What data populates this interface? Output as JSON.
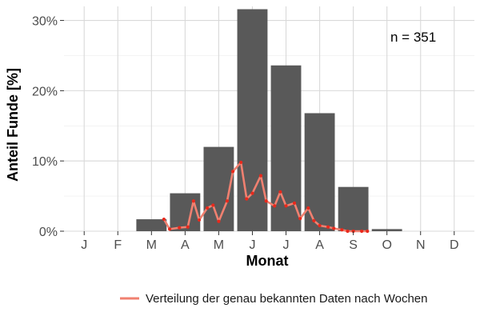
{
  "chart_data": {
    "type": "bar",
    "xlabel": "Monat",
    "ylabel": "Anteil Funde [%]",
    "annotation": "n = 351",
    "categories": [
      "J",
      "F",
      "M",
      "A",
      "M",
      "J",
      "J",
      "A",
      "S",
      "O",
      "N",
      "D"
    ],
    "values": [
      0,
      0,
      1.7,
      5.4,
      12.0,
      31.6,
      23.6,
      16.8,
      6.3,
      0.3,
      0,
      0
    ],
    "ylim": [
      0,
      32
    ],
    "yticks": [
      0,
      10,
      20,
      30
    ],
    "ytick_labels": [
      "0%",
      "10%",
      "20%",
      "30%"
    ],
    "bar_color": "#595959",
    "grid": true,
    "line_series": {
      "name": "Verteilung der genau bekannten Daten nach Wochen",
      "color": "#f08070",
      "point_color": "#e8291c",
      "x": [
        3.37,
        3.54,
        3.83,
        4.08,
        4.25,
        4.42,
        4.66,
        4.83,
        5.0,
        5.25,
        5.42,
        5.66,
        5.83,
        6.0,
        6.25,
        6.41,
        6.66,
        6.83,
        7.0,
        7.25,
        7.42,
        7.66,
        7.83,
        8.0,
        8.25,
        8.42,
        8.66,
        8.83,
        9.0,
        9.25,
        9.42
      ],
      "y": [
        1.7,
        0.3,
        0.5,
        0.6,
        4.3,
        1.6,
        3.3,
        3.7,
        1.4,
        4.3,
        8.5,
        9.8,
        4.6,
        5.4,
        7.9,
        4.3,
        3.6,
        5.6,
        3.6,
        4.0,
        1.8,
        3.3,
        1.5,
        0.8,
        0.6,
        0.4,
        0.2,
        0.0,
        0.0,
        0.0,
        0.0
      ]
    },
    "legend": {
      "position": "bottom",
      "label": "Verteilung der genau bekannten Daten nach Wochen"
    }
  }
}
